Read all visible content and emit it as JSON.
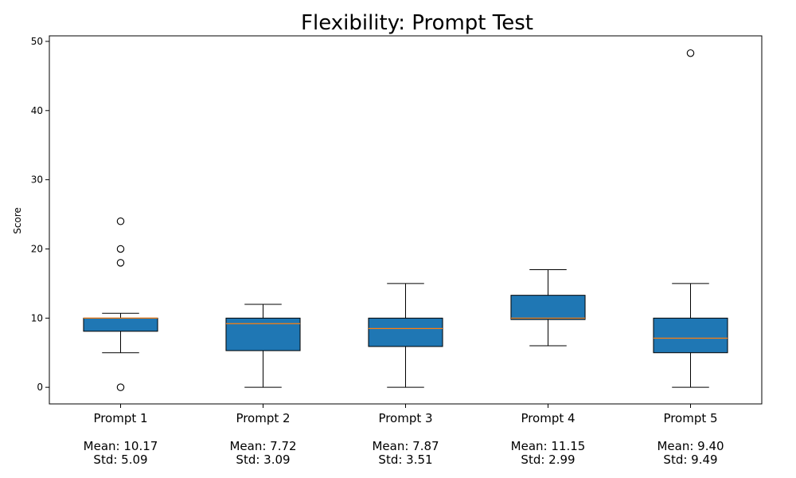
{
  "chart_data": {
    "type": "box",
    "title": "Flexibility: Prompt Test",
    "ylabel": "Score",
    "xlabel": "",
    "ylim": [
      -2.4,
      50.8
    ],
    "yticks": [
      0,
      10,
      20,
      30,
      40,
      50
    ],
    "grid": false,
    "box_color": "#1f77b4",
    "median_color": "#ff7f0e",
    "categories": [
      {
        "name": "Prompt 1",
        "mean_label": "Mean: 10.17",
        "std_label": "Std: 5.09",
        "whisker_low": 5,
        "q1": 8.1,
        "median": 10,
        "q3": 10,
        "whisker_high": 10.7,
        "outliers": [
          24,
          20,
          18,
          0
        ]
      },
      {
        "name": "Prompt 2",
        "mean_label": "Mean: 7.72",
        "std_label": "Std: 3.09",
        "whisker_low": 0,
        "q1": 5.3,
        "median": 9.2,
        "q3": 10,
        "whisker_high": 12,
        "outliers": []
      },
      {
        "name": "Prompt 3",
        "mean_label": "Mean: 7.87",
        "std_label": "Std: 3.51",
        "whisker_low": 0,
        "q1": 5.9,
        "median": 8.5,
        "q3": 10,
        "whisker_high": 15,
        "outliers": []
      },
      {
        "name": "Prompt 4",
        "mean_label": "Mean: 11.15",
        "std_label": "Std: 2.99",
        "whisker_low": 6,
        "q1": 9.8,
        "median": 10,
        "q3": 13.3,
        "whisker_high": 17,
        "outliers": []
      },
      {
        "name": "Prompt 5",
        "mean_label": "Mean: 9.40",
        "std_label": "Std: 9.49",
        "whisker_low": 0,
        "q1": 5,
        "median": 7.1,
        "q3": 10,
        "whisker_high": 15,
        "outliers": [
          48.3
        ]
      }
    ]
  }
}
